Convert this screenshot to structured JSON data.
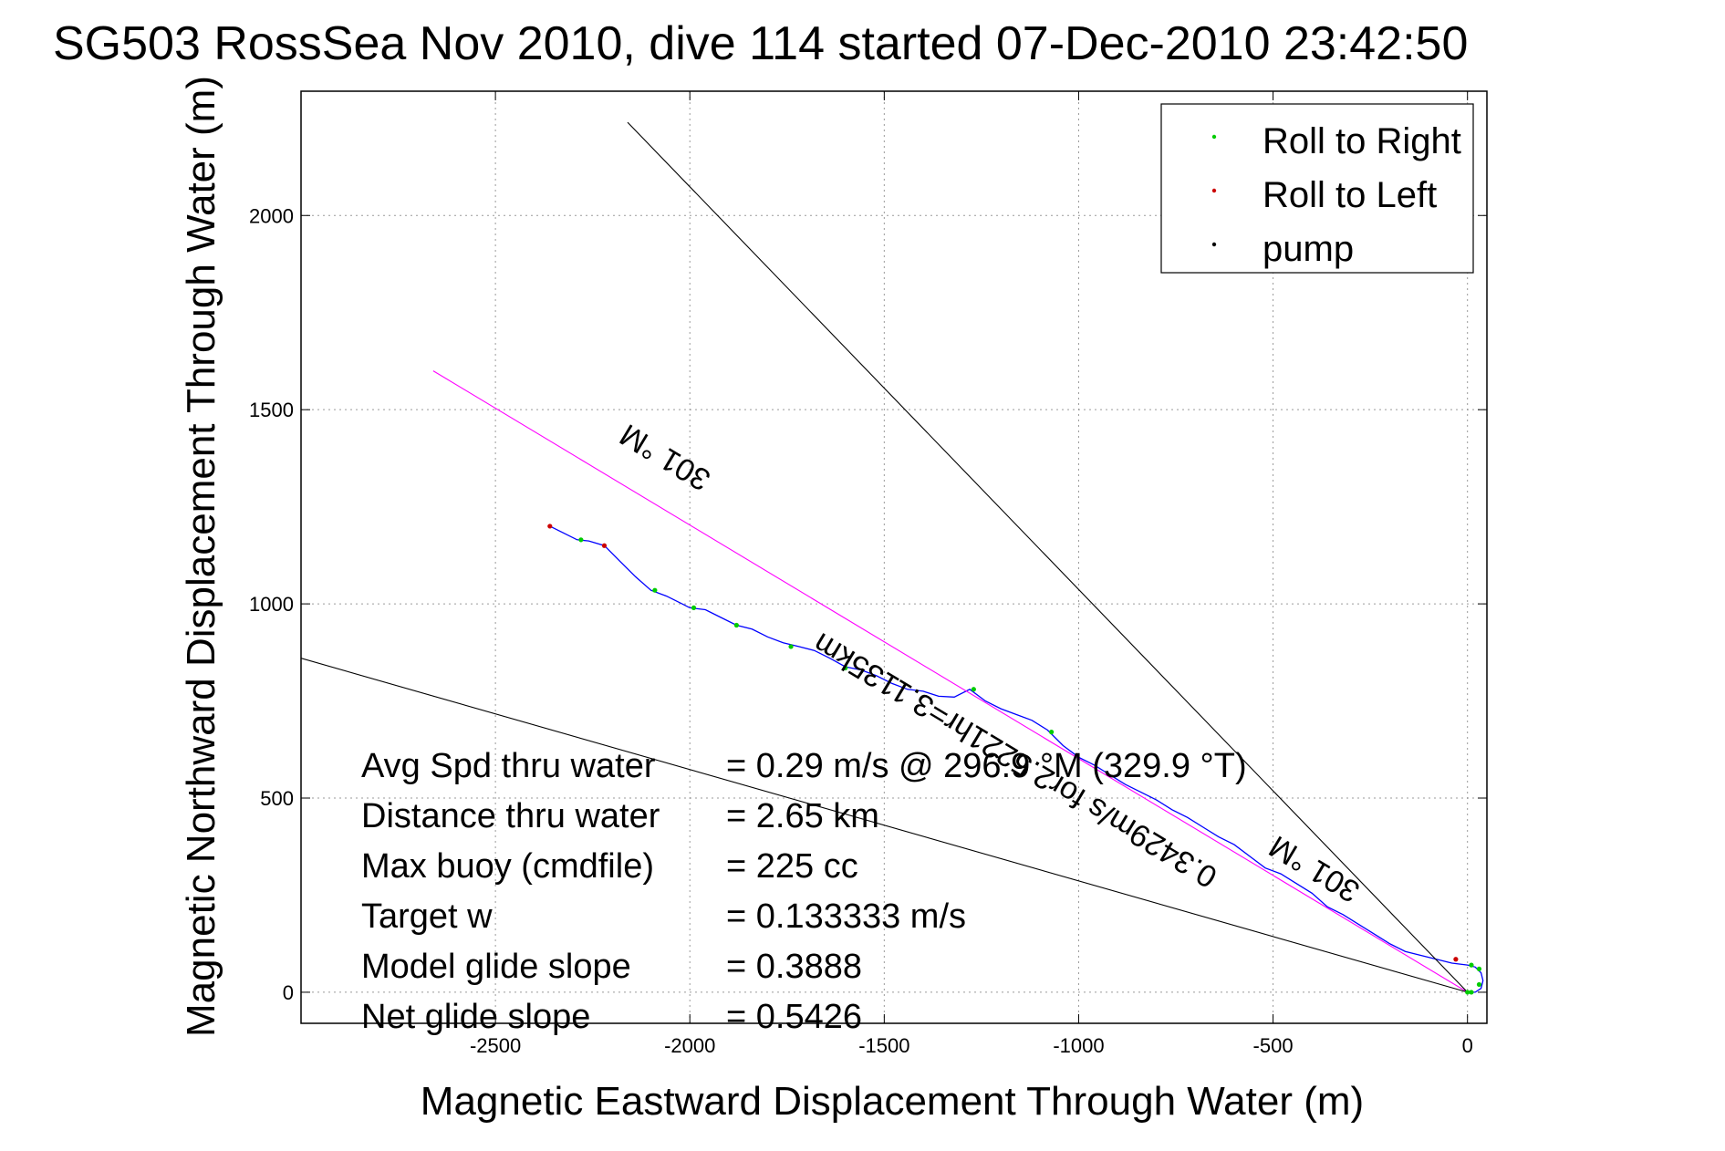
{
  "chart_data": {
    "type": "line",
    "title": "SG503 RossSea Nov 2010, dive 114 started 07-Dec-2010 23:42:50",
    "xlabel": "Magnetic Eastward Displacement Through Water (m)",
    "ylabel": "Magnetic Northward Displacement Through Water (m)",
    "xlim": [
      -3000,
      50
    ],
    "ylim": [
      -80,
      2320
    ],
    "xticks": [
      -2500,
      -2000,
      -1500,
      -1000,
      -500,
      0
    ],
    "yticks": [
      0,
      500,
      1000,
      1500,
      2000
    ],
    "grid": true,
    "legend": {
      "placement": "top-right",
      "entries": [
        {
          "label": "Roll to Right",
          "color": "#00cc00"
        },
        {
          "label": "Roll to Left",
          "color": "#cc0000"
        },
        {
          "label": "pump",
          "color": "#000000"
        }
      ]
    },
    "series": [
      {
        "color": "#0000ff",
        "x": [
          -2360,
          -2330,
          -2290,
          -2260,
          -2220,
          -2180,
          -2140,
          -2100,
          -2060,
          -2020,
          -2000,
          -1960,
          -1920,
          -1880,
          -1840,
          -1800,
          -1760,
          -1720,
          -1680,
          -1640,
          -1600,
          -1560,
          -1520,
          -1480,
          -1440,
          -1400,
          -1360,
          -1320,
          -1280,
          -1240,
          -1200,
          -1160,
          -1120,
          -1080,
          -1040,
          -1000,
          -960,
          -920,
          -880,
          -840,
          -800,
          -760,
          -720,
          -680,
          -640,
          -600,
          -560,
          -520,
          -480,
          -440,
          -400,
          -360,
          -320,
          -280,
          -240,
          -200,
          -160,
          -120,
          -80,
          -40,
          0,
          20,
          35,
          40,
          35,
          20,
          0
        ],
        "y": [
          1200,
          1185,
          1165,
          1162,
          1150,
          1110,
          1070,
          1035,
          1020,
          1000,
          990,
          985,
          965,
          945,
          935,
          915,
          900,
          890,
          880,
          860,
          838,
          830,
          815,
          795,
          780,
          775,
          762,
          760,
          780,
          750,
          730,
          715,
          700,
          675,
          635,
          605,
          585,
          560,
          535,
          515,
          495,
          470,
          450,
          425,
          400,
          380,
          350,
          320,
          305,
          280,
          255,
          220,
          200,
          175,
          150,
          125,
          105,
          95,
          85,
          75,
          70,
          65,
          50,
          30,
          10,
          0,
          0
        ]
      },
      {
        "color": "#ff00ff",
        "x": [
          -2660,
          0
        ],
        "y": [
          1600,
          0
        ]
      },
      {
        "color": "#000000",
        "x": [
          -2160,
          0
        ],
        "y": [
          2240,
          0
        ]
      },
      {
        "color": "#000000",
        "x": [
          -3000,
          0
        ],
        "y": [
          860,
          0
        ]
      }
    ],
    "markers": {
      "roll_right": {
        "color": "#00cc00",
        "x": [
          -2280,
          -2090,
          -1990,
          -1880,
          -1740,
          -1600,
          -1270,
          -1070,
          10,
          30,
          30,
          10,
          0
        ],
        "y": [
          1165,
          1035,
          990,
          945,
          890,
          835,
          780,
          670,
          0,
          20,
          60,
          70,
          0
        ]
      },
      "roll_left": {
        "color": "#cc0000",
        "x": [
          -2360,
          -2220,
          -30
        ],
        "y": [
          1200,
          1150,
          85
        ]
      }
    },
    "annotations": [
      {
        "text": "301 °M",
        "x": -2050,
        "y": 1400,
        "rotation": 211
      },
      {
        "text": "301 °M",
        "x": -380,
        "y": 340,
        "rotation": 211
      },
      {
        "text": "0.3429m/s for2.5221hr=3.1135km",
        "x": -1150,
        "y": 620,
        "rotation": 211
      }
    ],
    "stats": [
      {
        "label": "Avg Spd thru water",
        "value": "=  0.29 m/s @ 296.9 °M (329.9 °T)"
      },
      {
        "label": "Distance thru water",
        "value": "=  2.65 km"
      },
      {
        "label": "Max buoy (cmdfile)",
        "value": "= 225 cc"
      },
      {
        "label": "Target w",
        "value": "= 0.133333 m/s"
      },
      {
        "label": "Model glide slope",
        "value": "= 0.3888"
      },
      {
        "label": "Net glide slope",
        "value": "= 0.5426"
      }
    ]
  }
}
